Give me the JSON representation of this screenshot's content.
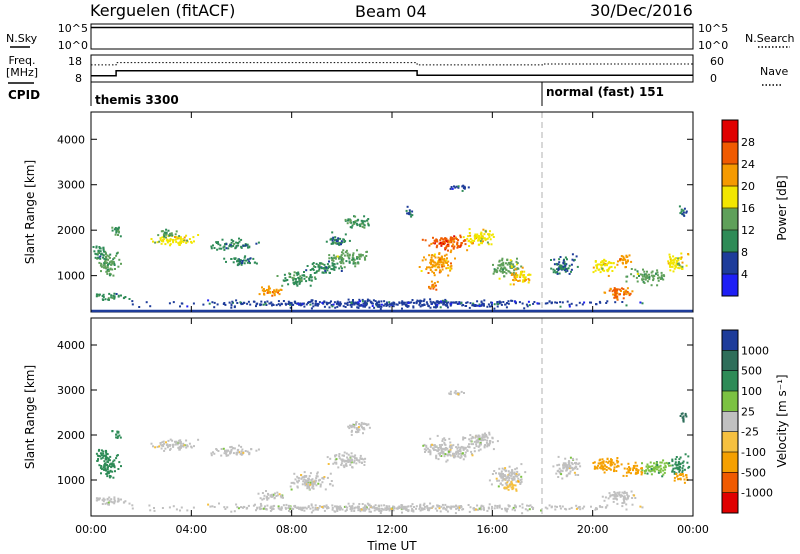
{
  "header": {
    "station": "Kerguelen (fitACF)",
    "beam": "Beam 04",
    "date": "30/Dec/2016"
  },
  "strip_labels": {
    "nsky": "N.Sky",
    "nsearch": "N.Search",
    "freq_line1": "Freq.",
    "freq_line2": "[MHz]",
    "nave": "Nave",
    "cpid": "CPID",
    "nsky_top": "10^5",
    "nsky_bottom": "10^0",
    "nsearch_top": "10^5",
    "nsearch_bottom": "10^0",
    "freq_top": "18",
    "freq_bottom": "8",
    "nave_top": "60",
    "nave_bottom": "0"
  },
  "cpid_labels": [
    {
      "text": "themis 3300",
      "hour": 0.0
    },
    {
      "text": "normal (fast) 151",
      "hour": 18.0
    }
  ],
  "chart_data": [
    {
      "type": "line",
      "panel": "noise",
      "series": [
        {
          "name": "N.Sky",
          "x": [
            0,
            2,
            4,
            6,
            8,
            10,
            12,
            14,
            16,
            18,
            20,
            22,
            24
          ],
          "values": [
            4.3,
            4.3,
            4.3,
            4.3,
            4.3,
            4.3,
            4.3,
            4.3,
            4.3,
            4.3,
            4.3,
            4.3,
            4.3
          ]
        },
        {
          "name": "N.Search",
          "x": [
            0,
            24
          ],
          "values": [
            0,
            0
          ]
        }
      ]
    },
    {
      "type": "line",
      "panel": "frequency",
      "ylim": [
        8,
        18
      ],
      "series": [
        {
          "name": "Freq.",
          "x": [
            0,
            1,
            1,
            13,
            13,
            24
          ],
          "values": [
            10.3,
            10.3,
            12.2,
            12.2,
            10.5,
            10.5
          ]
        },
        {
          "name": "Nave",
          "x": [
            0,
            1,
            1,
            13,
            13,
            18,
            18,
            24
          ],
          "values": [
            38,
            38,
            43,
            43,
            38,
            38,
            40,
            40
          ]
        }
      ]
    },
    {
      "type": "heatmap",
      "panel": "power",
      "xlabel": "",
      "ylabel": "Slant Range [km]",
      "xlim": [
        0,
        24
      ],
      "ylim": [
        200,
        4600
      ],
      "xticks": [
        "00:00",
        "04:00",
        "08:00",
        "12:00",
        "16:00",
        "20:00",
        "00:00"
      ],
      "yticks": [
        1000,
        2000,
        3000,
        4000
      ],
      "colorbar_label": "Power [dB]",
      "colorbar_ticks": [
        4,
        8,
        12,
        16,
        20,
        24,
        28
      ],
      "regions": [
        {
          "t": 0.7,
          "r": 1250,
          "dt": 0.6,
          "dr": 350,
          "v": 13
        },
        {
          "t": 0.3,
          "r": 1550,
          "dt": 0.4,
          "dr": 250,
          "v": 10
        },
        {
          "t": 1.0,
          "r": 2000,
          "dt": 0.3,
          "dr": 200,
          "v": 12
        },
        {
          "t": 0.8,
          "r": 560,
          "dt": 1.0,
          "dr": 100,
          "v": 10
        },
        {
          "t": 3.3,
          "r": 1800,
          "dt": 1.2,
          "dr": 180,
          "v": 18
        },
        {
          "t": 3.0,
          "r": 1950,
          "dt": 0.6,
          "dr": 120,
          "v": 12
        },
        {
          "t": 5.6,
          "r": 1700,
          "dt": 1.2,
          "dr": 150,
          "v": 9
        },
        {
          "t": 5.9,
          "r": 1350,
          "dt": 0.9,
          "dr": 150,
          "v": 9
        },
        {
          "t": 7.2,
          "r": 680,
          "dt": 0.8,
          "dr": 130,
          "v": 22
        },
        {
          "t": 8.2,
          "r": 950,
          "dt": 1.0,
          "dr": 200,
          "v": 11
        },
        {
          "t": 9.3,
          "r": 1200,
          "dt": 1.0,
          "dr": 200,
          "v": 10
        },
        {
          "t": 10.2,
          "r": 1400,
          "dt": 1.0,
          "dr": 250,
          "v": 13
        },
        {
          "t": 10.6,
          "r": 2200,
          "dt": 0.7,
          "dr": 200,
          "v": 12
        },
        {
          "t": 9.8,
          "r": 1800,
          "dt": 0.6,
          "dr": 200,
          "v": 9
        },
        {
          "t": 12.7,
          "r": 2400,
          "dt": 0.2,
          "dr": 200,
          "v": 6
        },
        {
          "t": 14.2,
          "r": 1750,
          "dt": 1.3,
          "dr": 220,
          "v": 26
        },
        {
          "t": 13.8,
          "r": 1300,
          "dt": 0.9,
          "dr": 350,
          "v": 22
        },
        {
          "t": 13.6,
          "r": 800,
          "dt": 0.3,
          "dr": 150,
          "v": 24
        },
        {
          "t": 15.5,
          "r": 1850,
          "dt": 0.9,
          "dr": 250,
          "v": 18
        },
        {
          "t": 16.5,
          "r": 1200,
          "dt": 0.8,
          "dr": 300,
          "v": 14
        },
        {
          "t": 17.1,
          "r": 1000,
          "dt": 0.6,
          "dr": 250,
          "v": 20
        },
        {
          "t": 14.6,
          "r": 2950,
          "dt": 0.6,
          "dr": 80,
          "v": 6
        },
        {
          "t": 18.8,
          "r": 1250,
          "dt": 0.7,
          "dr": 300,
          "v": 8
        },
        {
          "t": 20.4,
          "r": 1250,
          "dt": 0.6,
          "dr": 250,
          "v": 18
        },
        {
          "t": 21.2,
          "r": 1350,
          "dt": 0.4,
          "dr": 200,
          "v": 22
        },
        {
          "t": 21.0,
          "r": 650,
          "dt": 0.8,
          "dr": 200,
          "v": 24
        },
        {
          "t": 22.1,
          "r": 1000,
          "dt": 1.0,
          "dr": 200,
          "v": 13
        },
        {
          "t": 23.3,
          "r": 1300,
          "dt": 0.6,
          "dr": 300,
          "v": 18
        },
        {
          "t": 23.6,
          "r": 2450,
          "dt": 0.2,
          "dr": 200,
          "v": 8
        },
        {
          "t": 12.0,
          "r": 400,
          "dt": 12.0,
          "dr": 120,
          "v": 6
        }
      ]
    },
    {
      "type": "heatmap",
      "panel": "velocity",
      "xlabel": "Time UT",
      "ylabel": "Slant Range [km]",
      "xlim": [
        0,
        24
      ],
      "ylim": [
        200,
        4600
      ],
      "xticks": [
        "00:00",
        "04:00",
        "08:00",
        "12:00",
        "16:00",
        "20:00",
        "00:00"
      ],
      "yticks": [
        1000,
        2000,
        3000,
        4000
      ],
      "colorbar_label": "Velocity [m s⁻¹]",
      "colorbar_ticks": [
        1000,
        500,
        100,
        25,
        -25,
        -100,
        -500,
        -1000
      ],
      "regions": [
        {
          "t": 0.7,
          "r": 1300,
          "dt": 0.6,
          "dr": 350,
          "v": 150
        },
        {
          "t": 0.4,
          "r": 1600,
          "dt": 0.4,
          "dr": 200,
          "v": 300
        },
        {
          "t": 1.0,
          "r": 2050,
          "dt": 0.3,
          "dr": 150,
          "v": 200
        },
        {
          "t": 0.8,
          "r": 560,
          "dt": 1.0,
          "dr": 120,
          "v": 0
        },
        {
          "t": 3.3,
          "r": 1800,
          "dt": 1.2,
          "dr": 180,
          "v": 0
        },
        {
          "t": 5.6,
          "r": 1650,
          "dt": 1.2,
          "dr": 150,
          "v": 0
        },
        {
          "t": 7.2,
          "r": 680,
          "dt": 0.8,
          "dr": 130,
          "v": 0
        },
        {
          "t": 8.7,
          "r": 1000,
          "dt": 1.2,
          "dr": 250,
          "v": 0
        },
        {
          "t": 10.2,
          "r": 1450,
          "dt": 1.0,
          "dr": 250,
          "v": 0
        },
        {
          "t": 10.6,
          "r": 2200,
          "dt": 0.7,
          "dr": 200,
          "v": 0
        },
        {
          "t": 14.3,
          "r": 1700,
          "dt": 1.4,
          "dr": 350,
          "v": 0
        },
        {
          "t": 15.5,
          "r": 1900,
          "dt": 0.9,
          "dr": 250,
          "v": 0
        },
        {
          "t": 16.6,
          "r": 1100,
          "dt": 0.9,
          "dr": 350,
          "v": 0
        },
        {
          "t": 16.7,
          "r": 900,
          "dt": 0.5,
          "dr": 150,
          "v": -80
        },
        {
          "t": 14.6,
          "r": 2950,
          "dt": 0.6,
          "dr": 80,
          "v": 0
        },
        {
          "t": 19.0,
          "r": 1300,
          "dt": 0.8,
          "dr": 300,
          "v": 0
        },
        {
          "t": 20.5,
          "r": 1350,
          "dt": 0.8,
          "dr": 250,
          "v": -200
        },
        {
          "t": 21.6,
          "r": 1250,
          "dt": 0.6,
          "dr": 200,
          "v": -150
        },
        {
          "t": 22.5,
          "r": 1300,
          "dt": 0.8,
          "dr": 250,
          "v": 80
        },
        {
          "t": 23.4,
          "r": 1350,
          "dt": 0.5,
          "dr": 300,
          "v": 200
        },
        {
          "t": 23.5,
          "r": 1100,
          "dt": 0.4,
          "dr": 150,
          "v": -300
        },
        {
          "t": 21.0,
          "r": 650,
          "dt": 0.9,
          "dr": 200,
          "v": 0
        },
        {
          "t": 23.6,
          "r": 2450,
          "dt": 0.2,
          "dr": 200,
          "v": 600
        },
        {
          "t": 12.0,
          "r": 400,
          "dt": 12.0,
          "dr": 120,
          "v": 0
        }
      ]
    }
  ],
  "colors": {
    "power_scale": [
      "#1f1ff5",
      "#1e3c9a",
      "#2e8b57",
      "#5fa05a",
      "#f2e600",
      "#f59a00",
      "#f05a00",
      "#e00000"
    ],
    "velocity_scale": [
      "#e00000",
      "#f05a00",
      "#f5a000",
      "#f5c040",
      "#c0c0c0",
      "#7cc242",
      "#2e8b57",
      "#2f6e5a",
      "#1e3c9a"
    ],
    "dash_marker": "#b0b0b0"
  }
}
